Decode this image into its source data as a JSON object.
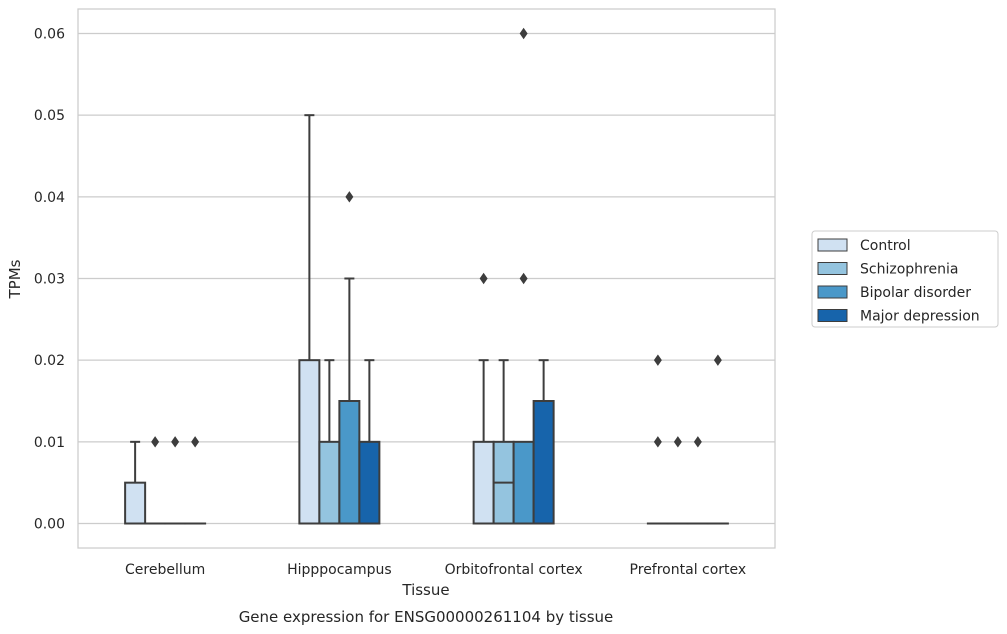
{
  "chart_data": {
    "type": "box",
    "xlabel": "Tissue",
    "ylabel": "TPMs",
    "caption": "Gene expression for ENSG00000261104 by tissue",
    "ylim": [
      -0.003,
      0.063
    ],
    "yticks": [
      "0.00",
      "0.01",
      "0.02",
      "0.03",
      "0.04",
      "0.05",
      "0.06"
    ],
    "grid": true,
    "legend_position": "right",
    "categories": [
      "Cerebellum",
      "Hipppocampus",
      "Orbitofrontal cortex",
      "Prefrontal cortex"
    ],
    "series": [
      {
        "name": "Control",
        "color": "#d0e1f2",
        "boxes": [
          {
            "q1": 0,
            "median": 0,
            "q3": 0.005,
            "whisker_low": 0,
            "whisker_high": 0.01,
            "outliers": []
          },
          {
            "q1": 0,
            "median": 0,
            "q3": 0.02,
            "whisker_low": 0,
            "whisker_high": 0.05,
            "outliers": []
          },
          {
            "q1": 0,
            "median": 0,
            "q3": 0.01,
            "whisker_low": 0,
            "whisker_high": 0.02,
            "outliers": [
              0.03
            ]
          },
          {
            "q1": 0,
            "median": 0,
            "q3": 0,
            "whisker_low": 0,
            "whisker_high": 0,
            "outliers": [
              0.01,
              0.02
            ]
          }
        ]
      },
      {
        "name": "Schizophrenia",
        "color": "#94c4df",
        "boxes": [
          {
            "q1": 0,
            "median": 0,
            "q3": 0,
            "whisker_low": 0,
            "whisker_high": 0,
            "outliers": [
              0.01
            ]
          },
          {
            "q1": 0,
            "median": 0,
            "q3": 0.01,
            "whisker_low": 0,
            "whisker_high": 0.02,
            "outliers": []
          },
          {
            "q1": 0,
            "median": 0.005,
            "q3": 0.01,
            "whisker_low": 0,
            "whisker_high": 0.02,
            "outliers": []
          },
          {
            "q1": 0,
            "median": 0,
            "q3": 0,
            "whisker_low": 0,
            "whisker_high": 0,
            "outliers": [
              0.01
            ]
          }
        ]
      },
      {
        "name": "Bipolar disorder",
        "color": "#4a98c9",
        "boxes": [
          {
            "q1": 0,
            "median": 0,
            "q3": 0,
            "whisker_low": 0,
            "whisker_high": 0,
            "outliers": [
              0.01
            ]
          },
          {
            "q1": 0,
            "median": 0,
            "q3": 0.015,
            "whisker_low": 0,
            "whisker_high": 0.03,
            "outliers": [
              0.04
            ]
          },
          {
            "q1": 0,
            "median": 0,
            "q3": 0.01,
            "whisker_low": 0,
            "whisker_high": 0.01,
            "outliers": [
              0.03,
              0.06
            ]
          },
          {
            "q1": 0,
            "median": 0,
            "q3": 0,
            "whisker_low": 0,
            "whisker_high": 0,
            "outliers": [
              0.01
            ]
          }
        ]
      },
      {
        "name": "Major depression",
        "color": "#1764ab",
        "boxes": [
          {
            "q1": 0,
            "median": 0,
            "q3": 0,
            "whisker_low": 0,
            "whisker_high": 0,
            "outliers": [
              0.01
            ]
          },
          {
            "q1": 0,
            "median": 0,
            "q3": 0.01,
            "whisker_low": 0,
            "whisker_high": 0.02,
            "outliers": []
          },
          {
            "q1": 0,
            "median": 0,
            "q3": 0.015,
            "whisker_low": 0,
            "whisker_high": 0.02,
            "outliers": []
          },
          {
            "q1": 0,
            "median": 0,
            "q3": 0,
            "whisker_low": 0,
            "whisker_high": 0,
            "outliers": [
              0.02
            ]
          }
        ]
      }
    ]
  }
}
